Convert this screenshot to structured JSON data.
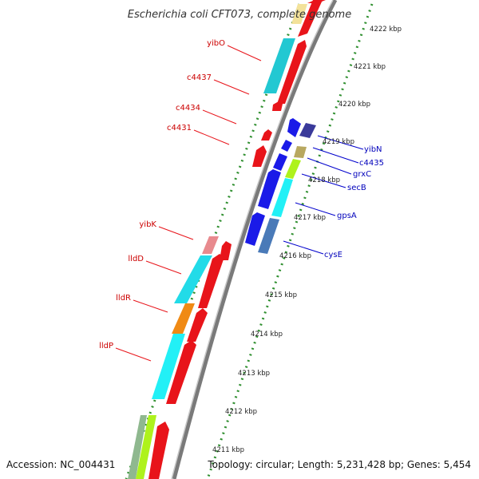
{
  "title": "Escherichia coli CFT073, complete genome",
  "footer": {
    "accession": "Accession: NC_004431",
    "topology": "Topology: circular; Length: 5,231,428 bp; Genes: 5,454"
  },
  "colors": {
    "strand_reverse_label": "#cc0000",
    "strand_forward_label": "#0000bb",
    "backbone": "#7a7a7a",
    "tick_dots": "#2f8f2f"
  },
  "ticks": [
    "4222 kbp",
    "4221 kbp",
    "4220 kbp",
    "4219 kbp",
    "4218 kbp",
    "4217 kbp",
    "4216 kbp",
    "4215 kbp",
    "4214 kbp",
    "4213 kbp",
    "4212 kbp",
    "4211 kbp"
  ],
  "genes_reverse": [
    {
      "name": "yibO"
    },
    {
      "name": "c4437"
    },
    {
      "name": "c4434"
    },
    {
      "name": "c4431"
    },
    {
      "name": "yibK"
    },
    {
      "name": "lldD"
    },
    {
      "name": "lldR"
    },
    {
      "name": "lldP"
    }
  ],
  "genes_forward": [
    {
      "name": "yibN"
    },
    {
      "name": "c4435"
    },
    {
      "name": "grxC"
    },
    {
      "name": "secB"
    },
    {
      "name": "gpsA"
    },
    {
      "name": "cysE"
    }
  ]
}
